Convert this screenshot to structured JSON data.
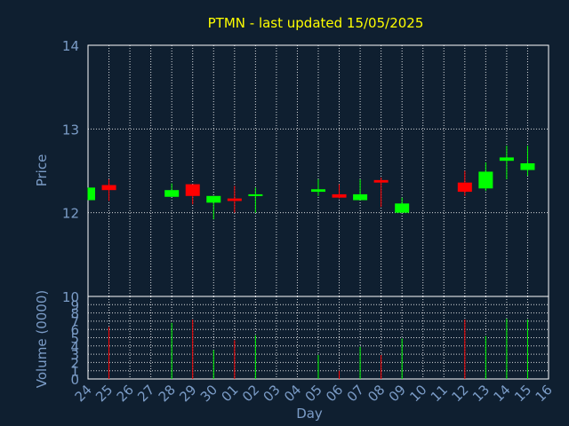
{
  "chart_data": {
    "type": "candlestick",
    "title": "PTMN - last updated 15/05/2025",
    "xlabel": "Day",
    "price_panel": {
      "ylabel": "Price",
      "ylim": [
        11,
        14
      ],
      "yticks": [
        "12",
        "13",
        "14"
      ]
    },
    "volume_panel": {
      "ylabel": "Volume (0000)",
      "ylim": [
        0,
        10
      ],
      "yticks": [
        "0",
        "1",
        "2",
        "3",
        "4",
        "5",
        "6",
        "7",
        "8",
        "9",
        "10"
      ]
    },
    "price_bottom_label": "10",
    "categories": [
      "24",
      "25",
      "26",
      "27",
      "28",
      "29",
      "30",
      "01",
      "02",
      "03",
      "04",
      "05",
      "06",
      "07",
      "08",
      "09",
      "10",
      "11",
      "12",
      "13",
      "14",
      "15",
      "16"
    ],
    "candles": [
      {
        "day": "24",
        "open": 12.15,
        "close": 12.3,
        "high": 12.3,
        "low": 12.15,
        "volume": 0
      },
      {
        "day": "25",
        "open": 12.33,
        "close": 12.27,
        "high": 12.4,
        "low": 12.14,
        "volume": 6.3
      },
      {
        "day": "28",
        "open": 12.19,
        "close": 12.27,
        "high": 12.35,
        "low": 12.19,
        "volume": 6.8
      },
      {
        "day": "29",
        "open": 12.34,
        "close": 12.2,
        "high": 12.34,
        "low": 12.1,
        "volume": 7.2
      },
      {
        "day": "30",
        "open": 12.12,
        "close": 12.2,
        "high": 12.2,
        "low": 11.92,
        "volume": 3.5
      },
      {
        "day": "01",
        "open": 12.17,
        "close": 12.14,
        "high": 12.32,
        "low": 12.0,
        "volume": 4.7
      },
      {
        "day": "02",
        "open": 12.2,
        "close": 12.22,
        "high": 12.3,
        "low": 12.0,
        "volume": 5.3
      },
      {
        "day": "05",
        "open": 12.25,
        "close": 12.28,
        "high": 12.4,
        "low": 12.2,
        "volume": 2.9
      },
      {
        "day": "06",
        "open": 12.22,
        "close": 12.18,
        "high": 12.34,
        "low": 12.17,
        "volume": 1.0
      },
      {
        "day": "07",
        "open": 12.15,
        "close": 12.22,
        "high": 12.4,
        "low": 12.15,
        "volume": 3.9
      },
      {
        "day": "08",
        "open": 12.39,
        "close": 12.36,
        "high": 12.42,
        "low": 12.07,
        "volume": 2.9
      },
      {
        "day": "09",
        "open": 12.0,
        "close": 12.11,
        "high": 12.18,
        "low": 12.0,
        "volume": 4.9
      },
      {
        "day": "12",
        "open": 12.36,
        "close": 12.25,
        "high": 12.5,
        "low": 12.2,
        "volume": 7.2
      },
      {
        "day": "13",
        "open": 12.29,
        "close": 12.49,
        "high": 12.6,
        "low": 12.26,
        "volume": 5.2
      },
      {
        "day": "14",
        "open": 12.62,
        "close": 12.66,
        "high": 12.8,
        "low": 12.4,
        "volume": 7.3
      },
      {
        "day": "15",
        "open": 12.51,
        "close": 12.59,
        "high": 12.8,
        "low": 12.44,
        "volume": 7.2
      }
    ],
    "grid": true,
    "colors": {
      "background": "#0f1f30",
      "title": "#ffff00",
      "axis_text": "#7b9cc7",
      "frame": "#ffffff",
      "grid": "#ffffff",
      "up": "#00ff00",
      "down": "#ff0000"
    }
  }
}
